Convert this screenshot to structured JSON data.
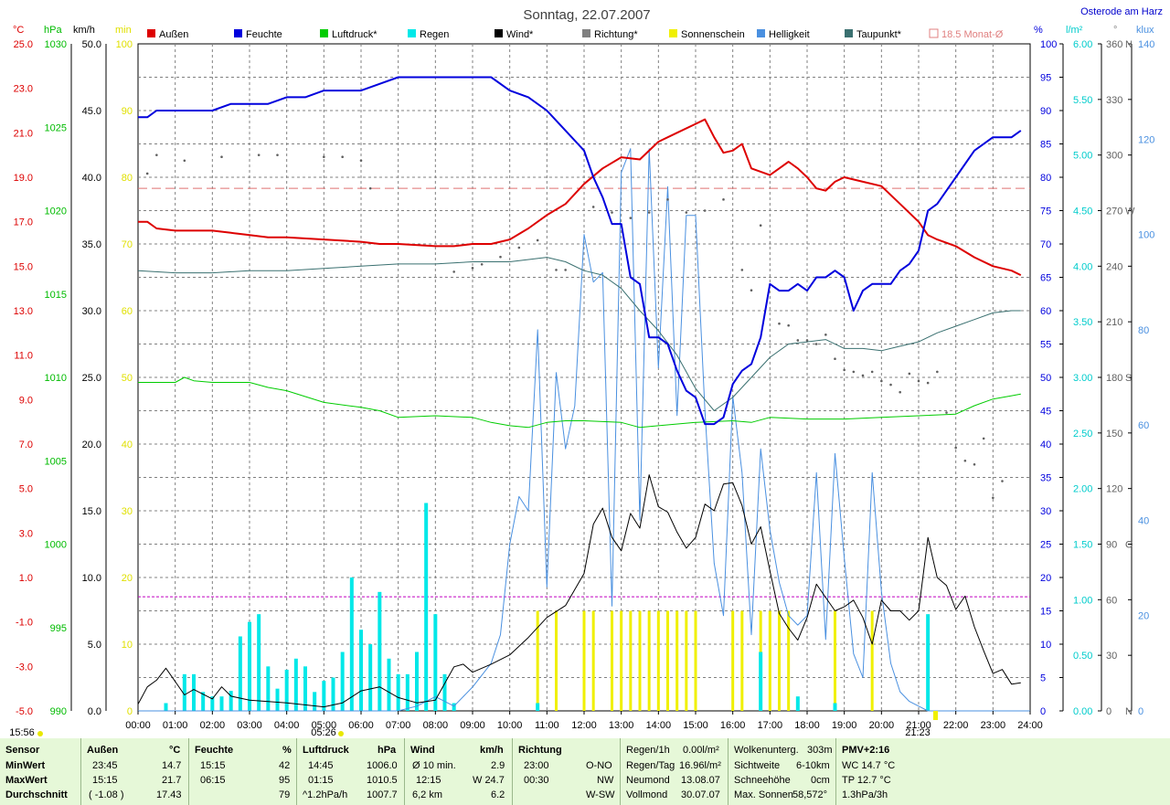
{
  "title": "Sonntag, 22.07.2007",
  "station": "Osterode am Harz",
  "legend": [
    {
      "label": "Außen",
      "color": "#dd0000"
    },
    {
      "label": "Feuchte",
      "color": "#0000dd"
    },
    {
      "label": "Luftdruck*",
      "color": "#00cc00"
    },
    {
      "label": "Regen",
      "color": "#00e8e8"
    },
    {
      "label": "Wind*",
      "color": "#000000"
    },
    {
      "label": "Richtung*",
      "color": "#808080"
    },
    {
      "label": "Sonnenschein",
      "color": "#f0f000"
    },
    {
      "label": "Helligkeit",
      "color": "#4a90e0"
    },
    {
      "label": "Taupunkt*",
      "color": "#3a7070"
    },
    {
      "label": "18.5 Monat-Ø",
      "color": "#e08080"
    }
  ],
  "axis_units": {
    "temp": "°C",
    "pressure": "hPa",
    "wind": "km/h",
    "sun": "min",
    "humidity": "%",
    "rain": "l/m²",
    "direction": "°",
    "light": "klux"
  },
  "left_axes": {
    "temp": [
      "25.0",
      "23.0",
      "21.0",
      "19.0",
      "17.0",
      "15.0",
      "13.0",
      "11.0",
      "9.0",
      "7.0",
      "5.0",
      "3.0",
      "1.0",
      "-1.0",
      "-3.0",
      "-5.0"
    ],
    "pressure": [
      "1030",
      "1025",
      "1020",
      "1015",
      "1010",
      "1005",
      "1000",
      "995",
      "990"
    ],
    "wind": [
      "50.0",
      "45.0",
      "40.0",
      "35.0",
      "30.0",
      "25.0",
      "20.0",
      "15.0",
      "10.0",
      "5.0",
      "0.0"
    ],
    "sun": [
      "100",
      "90",
      "80",
      "70",
      "60",
      "50",
      "40",
      "30",
      "20",
      "10",
      "0"
    ]
  },
  "right_axes": {
    "humidity": [
      "100",
      "95",
      "90",
      "85",
      "80",
      "75",
      "70",
      "65",
      "60",
      "55",
      "50",
      "45",
      "40",
      "35",
      "30",
      "25",
      "20",
      "15",
      "10",
      "5",
      "0"
    ],
    "rain": [
      "6.00",
      "5.50",
      "5.00",
      "4.50",
      "4.00",
      "3.50",
      "3.00",
      "2.50",
      "2.00",
      "1.50",
      "1.00",
      "0.50",
      "0.00"
    ],
    "direction": [
      "360",
      "330",
      "300",
      "270",
      "240",
      "210",
      "180",
      "150",
      "120",
      "90",
      "60",
      "30",
      "0"
    ],
    "direction_letters": {
      "360": "N",
      "270": "W",
      "180": "S",
      "90": "O",
      "0": "N"
    },
    "light": [
      "140",
      "120",
      "100",
      "80",
      "60",
      "40",
      "20",
      "0"
    ]
  },
  "x_ticks": [
    "00:00",
    "01:00",
    "02:00",
    "03:00",
    "04:00",
    "05:00",
    "06:00",
    "07:00",
    "08:00",
    "09:00",
    "10:00",
    "11:00",
    "12:00",
    "13:00",
    "14:00",
    "15:00",
    "16:00",
    "17:00",
    "18:00",
    "19:00",
    "20:00",
    "21:00",
    "22:00",
    "23:00",
    "24:00"
  ],
  "markers": {
    "moonrise": "15:56",
    "sunrise": "05:26",
    "sunset": "21:23"
  },
  "chart_data": {
    "type": "line",
    "x_range": [
      "00:00",
      "24:00"
    ],
    "ylim": {
      "temp": [
        -5,
        25
      ],
      "pressure": [
        990,
        1030
      ],
      "wind": [
        0,
        50
      ],
      "sunshine": [
        0,
        100
      ],
      "humidity": [
        0,
        100
      ],
      "rain": [
        0,
        6
      ],
      "direction": [
        0,
        360
      ],
      "light": [
        0,
        140
      ]
    },
    "monthly_mean_temp": 18.5,
    "series": [
      {
        "name": "Außen",
        "axis": "temp",
        "x": [
          0,
          0.25,
          0.5,
          1,
          2,
          2.5,
          3,
          3.5,
          4,
          5,
          6,
          6.5,
          7,
          8,
          8.5,
          9,
          9.5,
          10,
          10.5,
          11,
          11.5,
          12,
          12.5,
          13,
          13.5,
          14,
          14.5,
          15,
          15.25,
          15.5,
          15.75,
          16,
          16.25,
          16.5,
          17,
          17.25,
          17.5,
          17.75,
          18,
          18.25,
          18.5,
          18.75,
          19,
          19.5,
          20,
          20.5,
          21,
          21.25,
          21.5,
          22,
          22.5,
          23,
          23.5,
          23.75
        ],
        "y": [
          17.0,
          17.0,
          16.7,
          16.6,
          16.6,
          16.5,
          16.4,
          16.3,
          16.3,
          16.2,
          16.1,
          16.0,
          16.0,
          15.9,
          15.9,
          16.0,
          16.0,
          16.2,
          16.7,
          17.3,
          17.8,
          18.7,
          19.4,
          19.9,
          19.8,
          20.6,
          21.0,
          21.4,
          21.6,
          20.8,
          20.1,
          20.2,
          20.5,
          19.4,
          19.1,
          19.4,
          19.7,
          19.4,
          19.0,
          18.5,
          18.4,
          18.8,
          19.0,
          18.8,
          18.6,
          17.8,
          17.0,
          16.4,
          16.2,
          15.9,
          15.4,
          15.0,
          14.8,
          14.6
        ]
      },
      {
        "name": "Feuchte",
        "axis": "humidity",
        "x": [
          0,
          0.25,
          0.5,
          1,
          2,
          2.5,
          3,
          3.5,
          4,
          4.5,
          5,
          6,
          6.5,
          7,
          8,
          9,
          9.5,
          10,
          10.5,
          11,
          11.5,
          12,
          12.25,
          12.5,
          12.75,
          13,
          13.25,
          13.5,
          13.75,
          14,
          14.25,
          14.5,
          14.75,
          15,
          15.25,
          15.5,
          15.75,
          16,
          16.25,
          16.5,
          16.75,
          17,
          17.25,
          17.5,
          17.75,
          18,
          18.25,
          18.5,
          18.75,
          19,
          19.25,
          19.5,
          19.75,
          20,
          20.25,
          20.5,
          20.75,
          21,
          21.25,
          21.5,
          21.75,
          22,
          22.5,
          23,
          23.5,
          23.75
        ],
        "y": [
          89,
          89,
          90,
          90,
          90,
          91,
          91,
          91,
          92,
          92,
          93,
          93,
          94,
          95,
          95,
          95,
          95,
          93,
          92,
          90,
          87,
          84,
          80,
          77,
          73,
          73,
          65,
          64,
          56,
          56,
          55,
          51,
          48,
          47,
          43,
          43,
          44,
          49,
          51,
          52,
          56,
          64,
          63,
          63,
          64,
          63,
          65,
          65,
          66,
          65,
          60,
          63,
          64,
          64,
          64,
          66,
          67,
          69,
          75,
          76,
          78,
          80,
          84,
          86,
          86,
          87
        ]
      },
      {
        "name": "Luftdruck*",
        "axis": "pressure",
        "x": [
          0,
          1,
          1.25,
          1.5,
          2,
          3,
          3.5,
          4,
          5,
          6,
          6.5,
          7,
          8,
          9,
          9.5,
          10,
          10.5,
          11,
          11.5,
          12,
          13,
          13.5,
          14,
          15,
          16,
          16.5,
          17,
          18,
          19,
          20,
          21,
          22,
          22.5,
          23,
          23.5,
          23.75
        ],
        "y": [
          1009.7,
          1009.7,
          1010.0,
          1009.8,
          1009.7,
          1009.7,
          1009.4,
          1009.2,
          1008.5,
          1008.2,
          1008.0,
          1007.6,
          1007.7,
          1007.6,
          1007.3,
          1007.1,
          1007.0,
          1007.3,
          1007.4,
          1007.4,
          1007.3,
          1007.0,
          1007.1,
          1007.3,
          1007.4,
          1007.3,
          1007.6,
          1007.5,
          1007.5,
          1007.6,
          1007.7,
          1007.8,
          1008.3,
          1008.7,
          1008.9,
          1009.0
        ]
      },
      {
        "name": "Wind*",
        "axis": "wind",
        "x": [
          0,
          0.25,
          0.5,
          0.75,
          1,
          1.25,
          1.5,
          2,
          2.25,
          2.5,
          3,
          4,
          5,
          5.5,
          6,
          6.5,
          7,
          7.5,
          8,
          8.5,
          8.75,
          9,
          9.5,
          10,
          10.5,
          11,
          11.5,
          12,
          12.25,
          12.5,
          12.75,
          13,
          13.25,
          13.5,
          13.75,
          14,
          14.25,
          14.5,
          14.75,
          15,
          15.25,
          15.5,
          15.75,
          16,
          16.25,
          16.5,
          16.75,
          17,
          17.25,
          17.5,
          17.75,
          18,
          18.25,
          18.5,
          18.75,
          19,
          19.25,
          19.5,
          19.75,
          20,
          20.25,
          20.5,
          20.75,
          21,
          21.25,
          21.5,
          21.75,
          22,
          22.25,
          22.5,
          22.75,
          23,
          23.25,
          23.5,
          23.75
        ],
        "y": [
          0.5,
          1.8,
          2.3,
          3.2,
          2.2,
          1.2,
          1.6,
          0.9,
          1.8,
          1.1,
          0.8,
          0.6,
          0.3,
          0.6,
          1.5,
          1.8,
          1.0,
          0.6,
          0.8,
          3.3,
          3.5,
          2.9,
          3.5,
          4.2,
          5.5,
          7.0,
          7.9,
          10.3,
          14.0,
          15.2,
          13.0,
          12.0,
          14.8,
          13.7,
          17.7,
          15.3,
          14.9,
          13.4,
          12.2,
          13.0,
          15.5,
          15.0,
          17.0,
          17.1,
          15.4,
          12.5,
          13.8,
          10.5,
          7.3,
          6.2,
          5.3,
          7.0,
          9.5,
          8.5,
          7.5,
          7.8,
          8.3,
          7.0,
          5.0,
          8.3,
          7.5,
          7.5,
          6.8,
          7.5,
          13.0,
          10.0,
          9.4,
          7.6,
          8.6,
          6.3,
          4.5,
          2.8,
          3.1,
          2.0,
          2.1
        ]
      },
      {
        "name": "Taupunkt*",
        "axis": "temp",
        "x": [
          0,
          1,
          2,
          3,
          4,
          5,
          6,
          7,
          8,
          9,
          10,
          11,
          11.5,
          12,
          12.5,
          13,
          13.5,
          14,
          14.5,
          15,
          15.5,
          16,
          16.5,
          17,
          17.5,
          18,
          18.5,
          19,
          19.5,
          20,
          20.5,
          21,
          21.5,
          22,
          22.5,
          23,
          23.5,
          23.75
        ],
        "y": [
          14.8,
          14.7,
          14.7,
          14.8,
          14.8,
          14.9,
          15.0,
          15.1,
          15.1,
          15.2,
          15.2,
          15.4,
          15.2,
          14.8,
          14.6,
          14.0,
          13.0,
          12.1,
          11.0,
          9.5,
          8.5,
          9.1,
          10.0,
          10.9,
          11.5,
          11.6,
          11.7,
          11.3,
          11.3,
          11.2,
          11.4,
          11.6,
          12.0,
          12.3,
          12.6,
          12.9,
          13.0,
          13.0
        ]
      },
      {
        "name": "Helligkeit",
        "axis": "light",
        "x": [
          0,
          1,
          2,
          3,
          4,
          5,
          6,
          7,
          7.5,
          8,
          8.5,
          9,
          9.5,
          9.75,
          10,
          10.25,
          10.5,
          10.75,
          11,
          11.25,
          11.5,
          11.75,
          12,
          12.25,
          12.5,
          12.75,
          13,
          13.25,
          13.5,
          13.75,
          14,
          14.25,
          14.5,
          14.75,
          15,
          15.25,
          15.5,
          15.75,
          16,
          16.25,
          16.5,
          16.75,
          17,
          17.25,
          17.5,
          17.75,
          18,
          18.25,
          18.5,
          18.75,
          19,
          19.25,
          19.5,
          19.75,
          20,
          20.25,
          20.5,
          20.75,
          21,
          21.25,
          21.5,
          21.75,
          22,
          23,
          24
        ],
        "y": [
          0,
          0,
          0,
          0,
          0,
          0,
          0,
          0,
          1,
          3,
          1,
          5,
          10,
          16,
          35,
          45,
          42,
          80,
          26,
          71,
          55,
          64,
          100,
          90,
          92,
          22,
          113,
          118,
          40,
          118,
          72,
          110,
          62,
          104,
          104,
          63,
          31,
          20,
          66,
          50,
          16,
          55,
          38,
          27,
          20,
          18,
          20,
          50,
          15,
          54,
          32,
          12,
          7,
          50,
          25,
          10,
          4,
          2,
          1,
          0,
          0,
          0,
          0,
          0,
          0
        ]
      }
    ],
    "rain_bars": {
      "axis": "rain",
      "x": [
        0.75,
        1.25,
        1.5,
        1.75,
        2,
        2.25,
        2.5,
        2.75,
        3,
        3.25,
        3.5,
        3.75,
        4,
        4.25,
        4.5,
        4.75,
        5,
        5.25,
        5.5,
        5.75,
        6,
        6.25,
        6.5,
        6.75,
        7,
        7.25,
        7.5,
        7.75,
        8,
        8.25,
        8.5,
        10.75,
        16.75,
        17.75,
        18.75,
        21.25
      ],
      "y": [
        0.07,
        0.33,
        0.33,
        0.17,
        0.13,
        0.13,
        0.18,
        0.67,
        0.8,
        0.87,
        0.4,
        0.2,
        0.37,
        0.47,
        0.4,
        0.17,
        0.27,
        0.3,
        0.53,
        1.2,
        0.73,
        0.6,
        1.07,
        0.47,
        0.33,
        0.33,
        0.53,
        1.87,
        0.87,
        0.33,
        0.07,
        0.07,
        0.53,
        0.13,
        0.07,
        0.87
      ]
    },
    "sunshine_bars": {
      "axis": "sunshine",
      "x": [
        10.75,
        11.25,
        12,
        12.25,
        12.75,
        13,
        13.25,
        13.5,
        13.75,
        14,
        14.25,
        14.5,
        14.75,
        15,
        16,
        16.25,
        16.75,
        17,
        17.25,
        17.5,
        18.75,
        19.75
      ],
      "y": [
        15,
        15,
        15,
        15,
        15,
        15,
        15,
        15,
        15,
        15,
        15,
        15,
        15,
        15,
        15,
        15,
        15,
        15,
        15,
        15,
        15,
        15
      ]
    },
    "direction_points": {
      "axis": "direction",
      "x": [
        0.25,
        0.5,
        1.25,
        2.25,
        3.25,
        3.75,
        5,
        5.5,
        6,
        6.25,
        8.5,
        9,
        9.25,
        9.75,
        10.25,
        10.75,
        11.25,
        11.5,
        12.25,
        12.75,
        13.25,
        13.75,
        14.25,
        14.75,
        15.25,
        15.75,
        16.25,
        16.5,
        16.75,
        17.25,
        17.5,
        17.75,
        18,
        18.25,
        18.5,
        18.75,
        19,
        19.25,
        19.5,
        19.75,
        20,
        20.25,
        20.5,
        20.75,
        21,
        21.25,
        21.5,
        21.75,
        22,
        22.25,
        22.5,
        22.75,
        23,
        23.25
      ],
      "y": [
        290,
        300,
        297,
        299,
        300,
        300,
        299,
        299,
        297,
        282,
        237,
        239,
        241,
        245,
        250,
        254,
        238,
        238,
        272,
        269,
        266,
        269,
        276,
        269,
        270,
        276,
        238,
        227,
        262,
        209,
        208,
        200,
        200,
        198,
        203,
        190,
        184,
        183,
        181,
        183,
        178,
        176,
        172,
        182,
        178,
        177,
        183,
        161,
        142,
        135,
        133,
        147,
        115,
        124
      ]
    }
  },
  "summary": {
    "labels": {
      "sensor": "Sensor",
      "min": "MinWert",
      "max": "MaxWert",
      "avg": "Durchschnitt"
    },
    "aussen": {
      "head": "Außen",
      "unit": "°C",
      "min_time": "23:45",
      "min_val": "14.7",
      "max_time": "15:15",
      "max_val": "21.7",
      "avg_note": "( -1.08 )",
      "avg_val": "17.43"
    },
    "feuchte": {
      "head": "Feuchte",
      "unit": "%",
      "min_time": "15:15",
      "min_val": "42",
      "max_time": "06:15",
      "max_val": "95",
      "avg_val": "79"
    },
    "luftdruck": {
      "head": "Luftdruck",
      "unit": "hPa",
      "min_time": "14:45",
      "min_val": "1006.0",
      "max_time": "01:15",
      "max_val": "1010.5",
      "avg_note": "^1.2hPa/h",
      "avg_val": "1007.7"
    },
    "wind": {
      "head": "Wind",
      "unit": "km/h",
      "row1_label": "Ø 10 min.",
      "row1_val": "2.9",
      "row2_label": "12:15",
      "row2_val": "W 24.7",
      "row3_label": "6,2 km",
      "row3_val": "6.2"
    },
    "richtung": {
      "head": "Richtung",
      "row1_time": "23:00",
      "row1_val": "O-NO",
      "row2_time": "00:30",
      "row2_val": "NW",
      "row3_val": "W-SW"
    },
    "regen": {
      "r1_label": "Regen/1h",
      "r1_val": "0.00l/m²",
      "r2_label": "Regen/Tag",
      "r2_val": "16.96l/m²",
      "r3_label": "Neumond",
      "r3_val": "13.08.07",
      "r4_label": "Vollmond",
      "r4_val": "30.07.07"
    },
    "wolken": {
      "r1_label": "Wolkenunterg.",
      "r1_val": "303m",
      "r2_label": "Sichtweite",
      "r2_val": "6-10km",
      "r3_label": "Schneehöhe",
      "r3_val": "0cm",
      "r4_label": "Max. Sonnen",
      "r4_val": "58,572°"
    },
    "pmv": {
      "r1": "PMV+2:16",
      "r2": "WC 14.7 °C",
      "r3": "TP 12.7 °C",
      "r4": "1.3hPa/3h"
    }
  }
}
